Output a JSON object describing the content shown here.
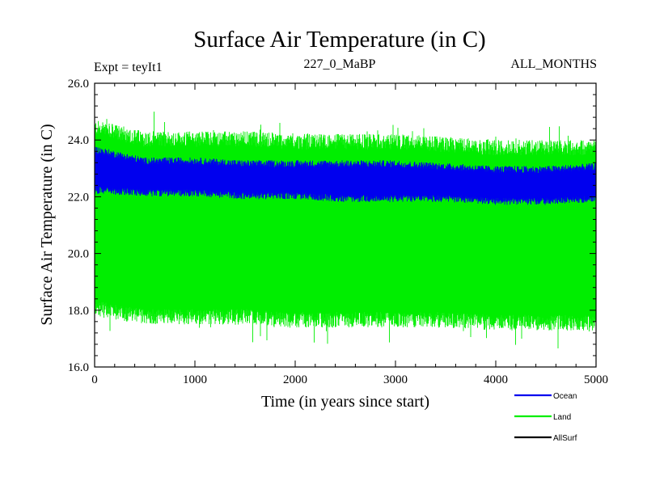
{
  "chart_data": {
    "type": "line",
    "title": "Surface Air Temperature (in C)",
    "subtitle_left": "Expt = teyIt1",
    "subtitle_center": "227_0_MaBP",
    "subtitle_right": "ALL_MONTHS",
    "xlabel": "Time (in years since start)",
    "ylabel": "Surface Air Temperature (in C)",
    "xlim": [
      0,
      5000
    ],
    "ylim": [
      16.0,
      26.0
    ],
    "xticks": [
      0,
      1000,
      2000,
      3000,
      4000,
      5000
    ],
    "xtick_labels": [
      "0",
      "1000",
      "2000",
      "3000",
      "4000",
      "5000"
    ],
    "yticks": [
      16.0,
      18.0,
      20.0,
      22.0,
      24.0,
      26.0
    ],
    "ytick_labels": [
      "16.0",
      "18.0",
      "20.0",
      "22.0",
      "24.0",
      "26.0"
    ],
    "legend_position": "bottom-right",
    "series": [
      {
        "name": "Land",
        "color": "#00ee00",
        "x": [
          0,
          500,
          1000,
          1500,
          2000,
          2500,
          3000,
          3500,
          4000,
          4500,
          5000
        ],
        "upper": [
          24.3,
          23.9,
          23.9,
          23.9,
          23.8,
          23.8,
          23.8,
          23.7,
          23.6,
          23.6,
          23.6
        ],
        "lower": [
          18.2,
          17.9,
          17.9,
          17.9,
          17.8,
          17.8,
          17.8,
          17.8,
          17.7,
          17.7,
          17.7
        ],
        "max": 25.0,
        "min": 16.5
      },
      {
        "name": "Ocean",
        "color": "#0000ee",
        "x": [
          0,
          500,
          1000,
          1500,
          2000,
          2500,
          3000,
          3500,
          4000,
          4500,
          5000
        ],
        "upper": [
          23.6,
          23.2,
          23.2,
          23.1,
          23.1,
          23.1,
          23.1,
          23.0,
          22.9,
          22.9,
          23.0
        ],
        "lower": [
          22.3,
          22.2,
          22.2,
          22.1,
          22.1,
          22.0,
          22.0,
          22.0,
          21.9,
          21.9,
          22.0
        ]
      },
      {
        "name": "AllSurf",
        "color": "#000000",
        "x": [],
        "upper": [],
        "lower": []
      }
    ]
  }
}
